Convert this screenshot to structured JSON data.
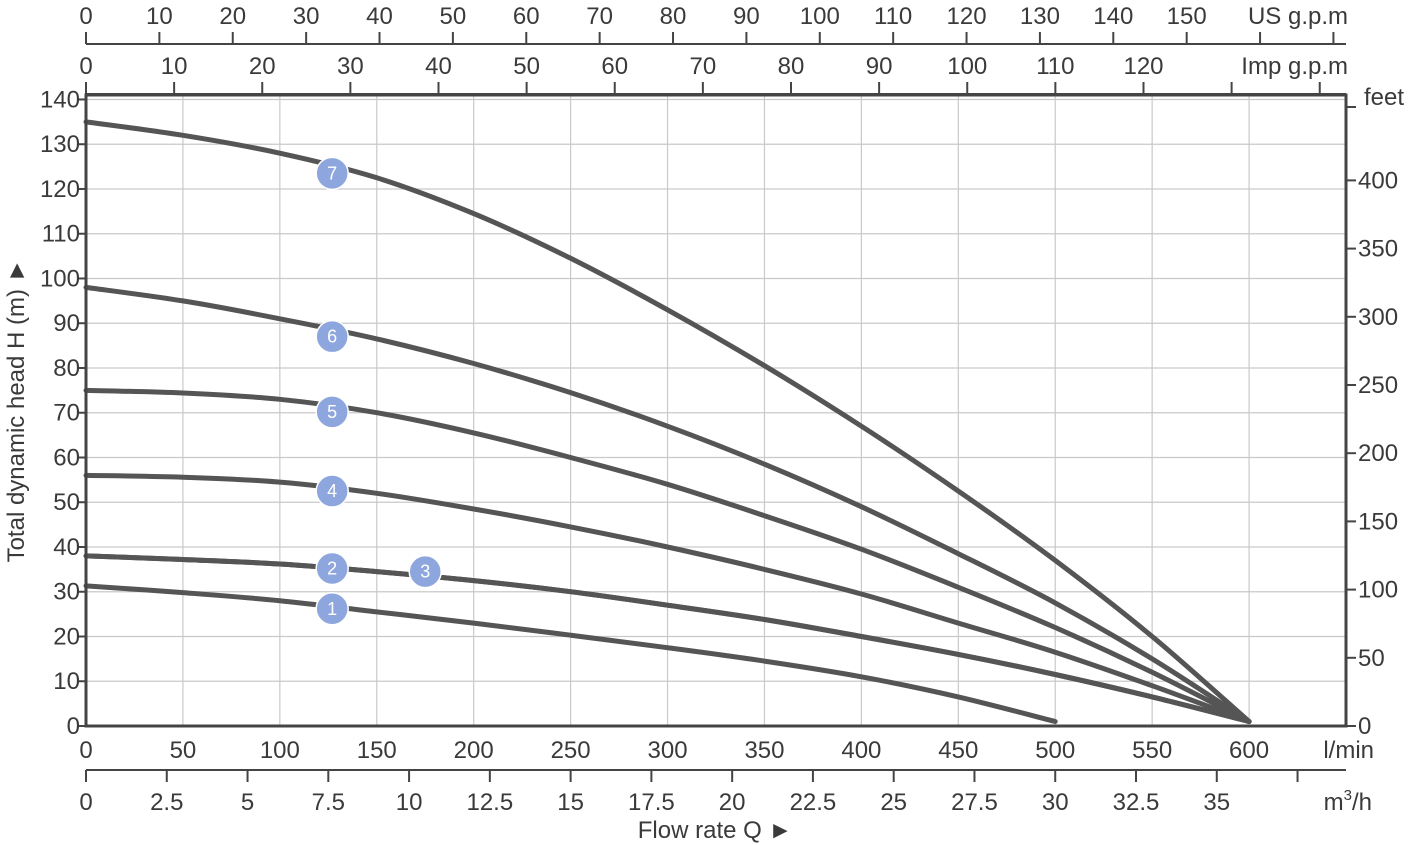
{
  "chart_data": {
    "type": "line",
    "title": "",
    "xlabel": "Flow rate Q ►",
    "ylabel": "Total dynamic head H (m) ►",
    "xlim": [
      0,
      650
    ],
    "ylim": [
      0,
      140
    ],
    "grid": true,
    "x_axis_primary": {
      "unit": "l/min",
      "ticks": [
        0,
        50,
        100,
        150,
        200,
        250,
        300,
        350,
        400,
        450,
        500,
        550,
        600
      ]
    },
    "x_axis_m3h": {
      "unit": "m³/h",
      "unit_base": "m",
      "unit_sup": "3",
      "unit_tail": "/h",
      "ticks": [
        "0",
        "2.5",
        "5",
        "7.5",
        "10",
        "12.5",
        "15",
        "17.5",
        "20",
        "22.5",
        "25",
        "27.5",
        "30",
        "32.5",
        "35"
      ],
      "tick_values": [
        0,
        2.5,
        5,
        7.5,
        10,
        12.5,
        15,
        17.5,
        20,
        22.5,
        25,
        27.5,
        30,
        32.5,
        35
      ],
      "minor_tick_values": [
        37.5
      ],
      "lmin_per_unit": 16.6667
    },
    "x_axis_us_gpm": {
      "unit": "US g.p.m",
      "ticks": [
        0,
        10,
        20,
        30,
        40,
        50,
        60,
        70,
        80,
        90,
        100,
        110,
        120,
        130,
        140,
        150
      ],
      "minor_tick_values": [
        160,
        170
      ],
      "lmin_per_unit": 3.7854
    },
    "x_axis_imp_gpm": {
      "unit": "Imp g.p.m",
      "ticks": [
        0,
        10,
        20,
        30,
        40,
        50,
        60,
        70,
        80,
        90,
        100,
        110,
        120
      ],
      "minor_tick_values": [
        130,
        140
      ],
      "lmin_per_unit": 4.5461
    },
    "y_axis_primary": {
      "unit": "m",
      "ticks": [
        0,
        10,
        20,
        30,
        40,
        50,
        60,
        70,
        80,
        90,
        100,
        110,
        120,
        130,
        140
      ]
    },
    "y_axis_feet": {
      "unit": "feet",
      "ticks": [
        0,
        50,
        100,
        150,
        200,
        250,
        300,
        350,
        400
      ],
      "m_per_unit": 0.3048
    },
    "series": [
      {
        "name": "1",
        "x": [
          0,
          50,
          100,
          150,
          200,
          250,
          300,
          350,
          400,
          450,
          500
        ],
        "y": [
          31.3,
          29.8,
          28,
          25.5,
          23,
          20.3,
          17.5,
          14.5,
          11,
          6.5,
          1
        ]
      },
      {
        "name": "2",
        "x": [
          0,
          50,
          100,
          150,
          200,
          250,
          300,
          350,
          400,
          450,
          500,
          550,
          600
        ],
        "y": [
          38,
          37.2,
          36.2,
          34.5,
          32.5,
          30,
          27,
          23.8,
          20,
          16,
          11.5,
          6.5,
          1
        ]
      },
      {
        "name": "3",
        "x": [
          0,
          50,
          100,
          150,
          200,
          250,
          300,
          350,
          400,
          450,
          500,
          550,
          600
        ],
        "y": [
          38,
          37.2,
          36.2,
          34.5,
          32.5,
          30,
          27,
          23.8,
          20,
          16,
          11.5,
          6.5,
          1
        ]
      },
      {
        "name": "4",
        "x": [
          0,
          50,
          100,
          150,
          200,
          250,
          300,
          350,
          400,
          450,
          500,
          550,
          600
        ],
        "y": [
          56,
          55.6,
          54.5,
          52,
          48.5,
          44.5,
          40,
          35,
          29.5,
          23,
          16.5,
          9,
          1
        ]
      },
      {
        "name": "5",
        "x": [
          0,
          50,
          100,
          150,
          200,
          250,
          300,
          350,
          400,
          450,
          500,
          550,
          600
        ],
        "y": [
          75,
          74.4,
          73,
          70,
          65.5,
          60,
          54,
          47,
          39.5,
          31,
          22,
          12,
          1
        ]
      },
      {
        "name": "6",
        "x": [
          0,
          50,
          100,
          150,
          200,
          250,
          300,
          350,
          400,
          450,
          500,
          550,
          600
        ],
        "y": [
          98,
          95,
          91,
          86.5,
          81,
          74.5,
          67,
          58.5,
          49,
          38.5,
          27.5,
          15,
          1
        ]
      },
      {
        "name": "7",
        "x": [
          0,
          50,
          100,
          150,
          200,
          250,
          300,
          350,
          400,
          450,
          500,
          550,
          600
        ],
        "y": [
          135,
          132,
          128,
          122.5,
          114.5,
          104.5,
          93,
          80.5,
          67,
          52.5,
          37,
          20,
          1
        ]
      }
    ],
    "curve_markers": [
      {
        "label": "7",
        "x": 127,
        "y": 123.5
      },
      {
        "label": "6",
        "x": 127,
        "y": 87
      },
      {
        "label": "5",
        "x": 127,
        "y": 70.2
      },
      {
        "label": "4",
        "x": 127,
        "y": 52.5
      },
      {
        "label": "2",
        "x": 127,
        "y": 35.2
      },
      {
        "label": "3",
        "x": 175,
        "y": 34.5
      },
      {
        "label": "1",
        "x": 127,
        "y": 26.2
      }
    ]
  }
}
